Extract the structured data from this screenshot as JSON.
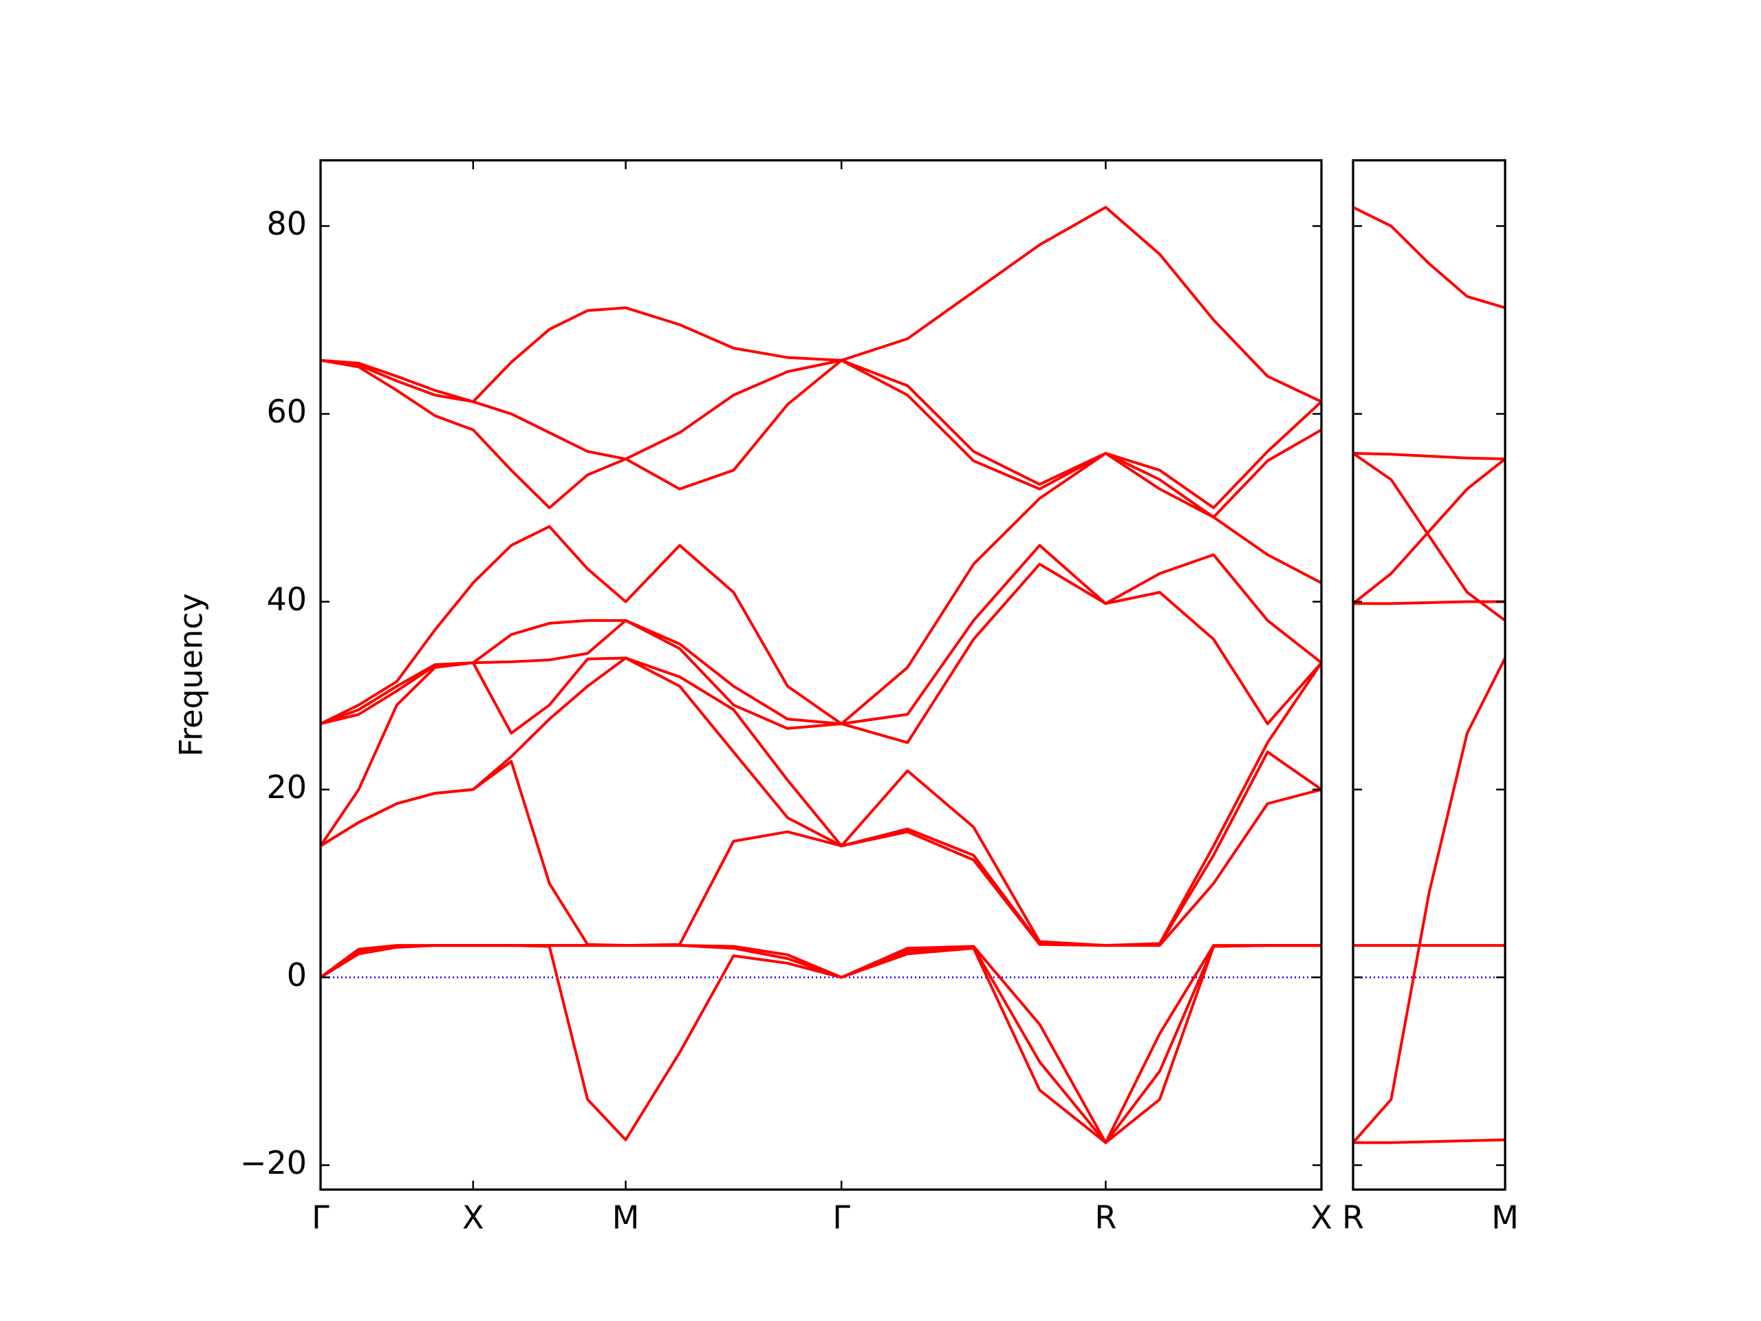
{
  "chart_data": [
    {
      "type": "line",
      "ylabel": "Frequency",
      "color": "#ff0000",
      "xlim": [
        0,
        6.56
      ],
      "ylim": [
        -22.6,
        87
      ],
      "xticks": [
        {
          "value": 0,
          "label": "Γ"
        },
        {
          "value": 1,
          "label": "X"
        },
        {
          "value": 2,
          "label": "M"
        },
        {
          "value": 3.414,
          "label": "Γ"
        },
        {
          "value": 5.146,
          "label": "R"
        },
        {
          "value": 6.56,
          "label": "X"
        }
      ],
      "yticks": [
        {
          "value": -20,
          "label": "−20"
        },
        0,
        20,
        40,
        60,
        80
      ],
      "hline": {
        "y": 0,
        "color": "#0000ff"
      },
      "x": [
        0,
        0.25,
        0.5,
        0.75,
        1,
        1.25,
        1.5,
        1.75,
        2,
        2.354,
        2.707,
        3.061,
        3.414,
        3.847,
        4.28,
        4.713,
        5.146,
        5.5,
        5.853,
        6.207,
        6.56
      ],
      "series": [
        {
          "values": [
            0,
            2.5,
            3.2,
            3.4,
            3.4,
            3.4,
            3.3,
            -13,
            -17.3,
            -8,
            2.3,
            1.5,
            0,
            2.5,
            3.1,
            -12,
            -17.6,
            -13,
            3.3,
            3.4,
            3.4
          ]
        },
        {
          "values": [
            0,
            2.8,
            3.3,
            3.4,
            3.4,
            3.4,
            3.4,
            3.4,
            3.4,
            3.4,
            3.1,
            2,
            0,
            2.8,
            3.2,
            -9,
            -17.6,
            -10,
            3.3,
            3.4,
            3.4
          ]
        },
        {
          "values": [
            0,
            3.0,
            3.4,
            3.4,
            3.4,
            3.4,
            3.4,
            3.4,
            3.4,
            3.4,
            3.3,
            2.4,
            0,
            3.1,
            3.3,
            -5,
            -17.6,
            -6,
            3.4,
            3.4,
            3.4
          ]
        },
        {
          "values": [
            14,
            16.5,
            18.5,
            19.6,
            20,
            23,
            10,
            3.5,
            3.4,
            3.5,
            14.5,
            15.5,
            14,
            15.5,
            12.5,
            3.5,
            3.4,
            3.4,
            10,
            18.5,
            20
          ]
        },
        {
          "values": [
            14,
            16.5,
            18.5,
            19.6,
            20,
            23.5,
            27.5,
            31,
            34,
            31,
            24,
            17,
            14,
            15.8,
            13,
            3.6,
            3.4,
            3.5,
            13,
            24,
            20
          ]
        },
        {
          "values": [
            14,
            20,
            29,
            33,
            33.5,
            26,
            29,
            33.9,
            34,
            32,
            28.5,
            21,
            14,
            22,
            16,
            3.8,
            3.4,
            3.6,
            14,
            25,
            33.5
          ]
        },
        {
          "values": [
            27,
            28,
            30.5,
            33.2,
            33.5,
            33.6,
            33.8,
            34.5,
            38,
            35,
            29,
            26.5,
            27,
            25,
            36,
            44,
            39.8,
            41,
            36,
            27,
            33.5
          ]
        },
        {
          "values": [
            27,
            28.5,
            31,
            33.3,
            33.5,
            36.5,
            37.7,
            38,
            38,
            35.5,
            31,
            27.5,
            27,
            28,
            38,
            46,
            39.8,
            43,
            45,
            38,
            33.5
          ]
        },
        {
          "values": [
            27,
            29,
            31.5,
            37,
            42,
            46,
            48,
            43.5,
            40,
            46,
            41,
            31,
            27,
            33,
            44,
            51,
            55.8,
            52,
            49,
            45,
            42
          ]
        },
        {
          "values": [
            65.7,
            65,
            62.5,
            59.8,
            58.3,
            54,
            50,
            53.5,
            55.2,
            52,
            54,
            61,
            65.7,
            62,
            55,
            52,
            55.8,
            53,
            49,
            55,
            58.3
          ]
        },
        {
          "values": [
            65.7,
            65.2,
            63.5,
            62,
            61.3,
            60,
            58,
            56,
            55.2,
            58,
            62,
            64.5,
            65.7,
            63,
            56,
            52.5,
            55.8,
            54,
            50,
            56,
            61.3
          ]
        },
        {
          "values": [
            65.7,
            65.4,
            64,
            62.5,
            61.3,
            65.5,
            69,
            71,
            71.3,
            69.5,
            67,
            66,
            65.7,
            68,
            73,
            78,
            82,
            77,
            70,
            64,
            61.3
          ]
        }
      ]
    },
    {
      "type": "line",
      "color": "#ff0000",
      "xlim": [
        0,
        1.414
      ],
      "ylim": [
        -22.6,
        87
      ],
      "xticks": [
        {
          "value": 0,
          "label": "R"
        },
        {
          "value": 1.414,
          "label": "M"
        }
      ],
      "yticks": [
        -20,
        0,
        20,
        40,
        60,
        80
      ],
      "hline": {
        "y": 0,
        "color": "#0000ff"
      },
      "x": [
        0,
        0.354,
        0.707,
        1.061,
        1.414
      ],
      "series": [
        {
          "values": [
            -17.6,
            -13,
            9,
            26,
            34
          ]
        },
        {
          "values": [
            -17.6,
            -17.6,
            -17.5,
            -17.4,
            -17.3
          ]
        },
        {
          "values": [
            3.4,
            3.4,
            3.4,
            3.4,
            3.4
          ]
        },
        {
          "values": [
            39.8,
            39.8,
            39.9,
            40,
            40
          ]
        },
        {
          "values": [
            39.8,
            43,
            47.5,
            52,
            55.2
          ]
        },
        {
          "values": [
            55.8,
            55.7,
            55.5,
            55.3,
            55.2
          ]
        },
        {
          "values": [
            55.8,
            53,
            47,
            41,
            38
          ]
        },
        {
          "values": [
            82,
            80,
            76,
            72.5,
            71.3
          ]
        }
      ]
    }
  ]
}
